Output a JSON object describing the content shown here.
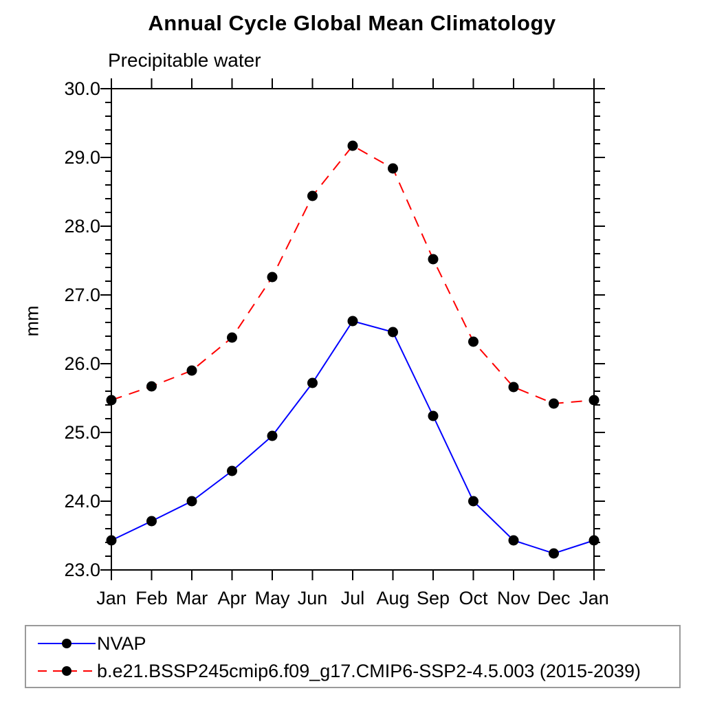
{
  "chart_data": {
    "type": "line",
    "title": "Annual Cycle Global Mean Climatology",
    "subtitle": "Precipitable water",
    "ylabel": "mm",
    "categories": [
      "Jan",
      "Feb",
      "Mar",
      "Apr",
      "May",
      "Jun",
      "Jul",
      "Aug",
      "Sep",
      "Oct",
      "Nov",
      "Dec",
      "Jan"
    ],
    "series": [
      {
        "name": "NVAP",
        "color": "#0000ff",
        "line_style": "solid",
        "marker": "filled-circle",
        "marker_color": "#000000",
        "values": [
          23.43,
          23.71,
          24.0,
          24.44,
          24.95,
          25.72,
          26.62,
          26.46,
          25.24,
          24.0,
          23.43,
          23.24,
          23.43
        ]
      },
      {
        "name": "b.e21.BSSP245cmip6.f09_g17.CMIP6-SSP2-4.5.003 (2015-2039)",
        "color": "#ff0000",
        "line_style": "dashed",
        "marker": "filled-circle",
        "marker_color": "#000000",
        "values": [
          25.47,
          25.67,
          25.9,
          26.38,
          27.26,
          28.44,
          29.17,
          28.84,
          27.52,
          26.32,
          25.66,
          25.42,
          25.47
        ]
      }
    ],
    "ylim": [
      23.0,
      30.0
    ],
    "ytick_major_interval": 1.0,
    "ytick_minor_interval": 0.2,
    "ytick_labels": [
      "23.0",
      "24.0",
      "25.0",
      "26.0",
      "27.0",
      "28.0",
      "29.0",
      "30.0"
    ],
    "grid": false,
    "legend_position": "bottom-left"
  }
}
